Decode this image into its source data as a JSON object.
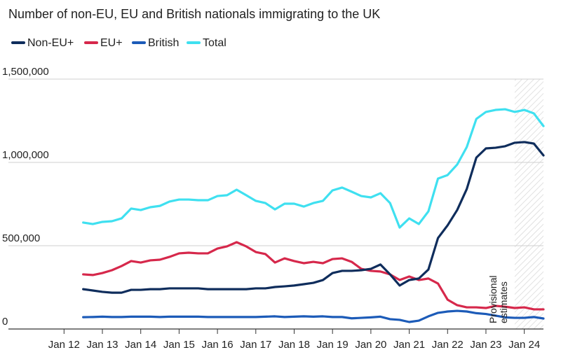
{
  "chart_data": {
    "type": "line",
    "title": "Number of non-EU, EU and British nationals immigrating to the UK",
    "x": [
      2012.5,
      2012.75,
      2013,
      2013.25,
      2013.5,
      2013.75,
      2014,
      2014.25,
      2014.5,
      2014.75,
      2015,
      2015.25,
      2015.5,
      2015.75,
      2016,
      2016.25,
      2016.5,
      2016.75,
      2017,
      2017.25,
      2017.5,
      2017.75,
      2018,
      2018.25,
      2018.5,
      2018.75,
      2019,
      2019.25,
      2019.5,
      2019.75,
      2020,
      2020.25,
      2020.5,
      2020.75,
      2021,
      2021.25,
      2021.5,
      2021.75,
      2022,
      2022.25,
      2022.5,
      2022.75,
      2023,
      2023.25,
      2023.5,
      2023.75,
      2024,
      2024.25,
      2024.5
    ],
    "series": [
      {
        "name": "Non-EU+",
        "color": "#0f2d5c",
        "values": [
          239000,
          231000,
          223000,
          218000,
          218000,
          235000,
          235000,
          239000,
          239000,
          244000,
          244000,
          244000,
          244000,
          239000,
          239000,
          239000,
          239000,
          239000,
          244000,
          244000,
          252000,
          256000,
          261000,
          269000,
          277000,
          294000,
          336000,
          349000,
          349000,
          353000,
          361000,
          387000,
          328000,
          261000,
          294000,
          303000,
          357000,
          546000,
          622000,
          714000,
          840000,
          1029000,
          1084000,
          1088000,
          1097000,
          1118000,
          1122000,
          1113000,
          1042000
        ]
      },
      {
        "name": "EU+",
        "color": "#d6284b",
        "values": [
          328000,
          324000,
          336000,
          353000,
          378000,
          408000,
          399000,
          412000,
          416000,
          433000,
          454000,
          458000,
          454000,
          454000,
          483000,
          496000,
          521000,
          496000,
          462000,
          450000,
          399000,
          424000,
          408000,
          395000,
          403000,
          395000,
          420000,
          424000,
          403000,
          361000,
          349000,
          345000,
          328000,
          294000,
          315000,
          294000,
          303000,
          273000,
          176000,
          143000,
          130000,
          130000,
          126000,
          139000,
          134000,
          126000,
          130000,
          118000,
          118000
        ]
      },
      {
        "name": "British",
        "color": "#1c5bb8",
        "values": [
          71000,
          72000,
          74000,
          72000,
          72000,
          74000,
          74000,
          74000,
          72000,
          74000,
          74000,
          74000,
          74000,
          72000,
          72000,
          72000,
          72000,
          72000,
          72000,
          74000,
          76000,
          72000,
          74000,
          76000,
          74000,
          76000,
          72000,
          72000,
          64000,
          67000,
          70000,
          74000,
          59000,
          55000,
          42000,
          50000,
          76000,
          97000,
          105000,
          109000,
          105000,
          95000,
          90000,
          80000,
          70000,
          67000,
          67000,
          72000,
          63000
        ]
      },
      {
        "name": "Total",
        "color": "#3fe0f0",
        "values": [
          639000,
          630000,
          643000,
          647000,
          664000,
          723000,
          714000,
          731000,
          739000,
          765000,
          777000,
          777000,
          773000,
          773000,
          798000,
          803000,
          836000,
          803000,
          769000,
          756000,
          718000,
          752000,
          752000,
          735000,
          756000,
          769000,
          832000,
          849000,
          824000,
          798000,
          790000,
          815000,
          756000,
          609000,
          664000,
          630000,
          706000,
          903000,
          924000,
          987000,
          1092000,
          1261000,
          1303000,
          1315000,
          1319000,
          1303000,
          1315000,
          1294000,
          1218000
        ]
      }
    ],
    "xlim": [
      2010.55,
      2024.5
    ],
    "xticks": [
      {
        "value": 2012,
        "label": "Jan 12"
      },
      {
        "value": 2013,
        "label": "Jan 13"
      },
      {
        "value": 2014,
        "label": "Jan 14"
      },
      {
        "value": 2015,
        "label": "Jan 15"
      },
      {
        "value": 2016,
        "label": "Jan 16"
      },
      {
        "value": 2017,
        "label": "Jan 17"
      },
      {
        "value": 2018,
        "label": "Jan 18"
      },
      {
        "value": 2019,
        "label": "Jan 19"
      },
      {
        "value": 2020,
        "label": "Jan 20"
      },
      {
        "value": 2021,
        "label": "Jan 21"
      },
      {
        "value": 2022,
        "label": "Jan 22"
      },
      {
        "value": 2023,
        "label": "Jan 23"
      },
      {
        "value": 2024,
        "label": "Jan 24"
      }
    ],
    "ylim": [
      0,
      1500000
    ],
    "yticks": [
      0,
      {
        "value": 500000,
        "label": "500,000"
      },
      {
        "value": 1000000,
        "label": "1,000,000"
      },
      {
        "value": 1500000,
        "label": "1,500,000"
      }
    ],
    "grid": true,
    "annotation": {
      "text": "Provisional estimates",
      "x": 2023.75
    }
  }
}
